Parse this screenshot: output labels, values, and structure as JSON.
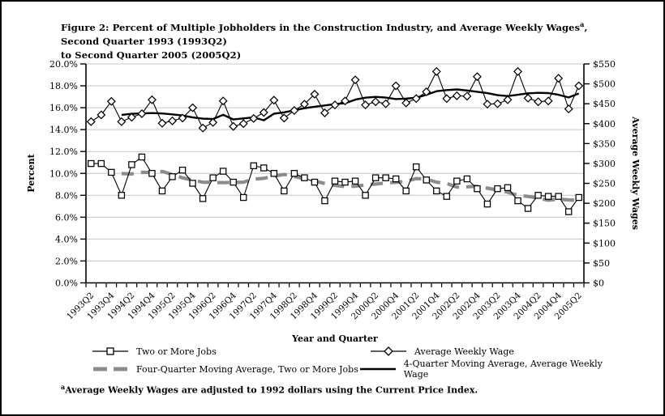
{
  "figure": {
    "title_prefix": "Figure 2:  ",
    "title_main": "Percent of Multiple Jobholders in the Construction Industry, and Average Weekly Wages",
    "title_sup": "a",
    "title_rest": ", Second Quarter 1993 (1993Q2)",
    "title_line2": "to Second Quarter 2005 (2005Q2)",
    "footnote_sup": "a",
    "footnote_text": "Average Weekly Wages are adjusted to 1992 dollars using the Current Price Index."
  },
  "chart_data": {
    "type": "line",
    "x_axis_label": "Year and Quarter",
    "y_left_axis_label": "Percent",
    "y_right_axis_label": "Average Weekly Wages",
    "y_left_range": [
      0,
      20
    ],
    "y_left_tick_step": 2,
    "y_right_range": [
      0,
      550
    ],
    "y_right_tick_step": 50,
    "y_left_ticks": [
      "0.0%",
      "2.0%",
      "4.0%",
      "6.0%",
      "8.0%",
      "10.0%",
      "12.0%",
      "14.0%",
      "16.0%",
      "18.0%",
      "20.0%"
    ],
    "y_right_ticks": [
      "$0",
      "$50",
      "$100",
      "$150",
      "$200",
      "$250",
      "$300",
      "$350",
      "$400",
      "$450",
      "$500",
      "$550"
    ],
    "grid": "horizontal",
    "legend_position": "bottom",
    "xtick_label_step": 2,
    "categories": [
      "1993Q2",
      "1993Q3",
      "1993Q4",
      "1994Q1",
      "1994Q2",
      "1994Q3",
      "1994Q4",
      "1995Q1",
      "1995Q2",
      "1995Q3",
      "1995Q4",
      "1996Q1",
      "1996Q2",
      "1996Q3",
      "1996Q4",
      "1997Q1",
      "1997Q2",
      "1997Q3",
      "1997Q4",
      "1998Q1",
      "1998Q2",
      "1998Q3",
      "1998Q4",
      "1999Q1",
      "1999Q2",
      "1999Q3",
      "1999Q4",
      "2000Q1",
      "2000Q2",
      "2000Q3",
      "2000Q4",
      "2001Q1",
      "2001Q2",
      "2001Q3",
      "2001Q4",
      "2002Q1",
      "2002Q2",
      "2002Q3",
      "2002Q4",
      "2003Q1",
      "2003Q2",
      "2003Q3",
      "2003Q4",
      "2004Q1",
      "2004Q2",
      "2004Q3",
      "2004Q4",
      "2005Q1",
      "2005Q2"
    ],
    "series": [
      {
        "name": "Two or More Jobs",
        "axis": "left",
        "marker": "square",
        "style": "thin-black",
        "values": [
          10.9,
          10.9,
          10.1,
          8.0,
          10.8,
          11.5,
          10.0,
          8.4,
          9.7,
          10.3,
          9.1,
          7.7,
          9.6,
          10.2,
          9.2,
          7.8,
          10.7,
          10.5,
          10.0,
          8.4,
          10.0,
          9.6,
          9.2,
          7.5,
          9.3,
          9.2,
          9.3,
          8.0,
          9.6,
          9.6,
          9.5,
          8.4,
          10.6,
          9.4,
          8.4,
          7.9,
          9.3,
          9.5,
          8.6,
          7.2,
          8.6,
          8.7,
          7.5,
          6.8,
          8.0,
          7.9,
          7.9,
          6.5,
          7.8
        ]
      },
      {
        "name": "Average Weekly Wage",
        "axis": "right",
        "marker": "diamond",
        "style": "thin-black",
        "values": [
          405,
          422,
          456,
          405,
          416,
          425,
          460,
          401,
          407,
          414,
          440,
          389,
          403,
          457,
          393,
          400,
          413,
          428,
          459,
          414,
          433,
          449,
          474,
          427,
          447,
          457,
          510,
          447,
          455,
          450,
          495,
          452,
          463,
          480,
          531,
          463,
          470,
          469,
          518,
          449,
          450,
          460,
          531,
          464,
          455,
          457,
          514,
          437,
          495
        ]
      },
      {
        "name": "Four-Quarter Moving Average, Two or More Jobs",
        "axis": "left",
        "marker": "none",
        "style": "gray-dashed",
        "values": [
          null,
          null,
          null,
          9.98,
          9.95,
          10.1,
          10.08,
          10.18,
          9.9,
          9.6,
          9.38,
          9.2,
          9.18,
          9.15,
          9.18,
          9.2,
          9.48,
          9.55,
          9.75,
          9.9,
          9.73,
          9.5,
          9.3,
          9.08,
          8.9,
          8.8,
          8.83,
          8.95,
          9.03,
          9.13,
          9.18,
          9.28,
          9.53,
          9.48,
          9.2,
          9.08,
          8.75,
          8.78,
          8.83,
          8.65,
          8.48,
          8.28,
          8.0,
          7.9,
          7.75,
          7.55,
          7.65,
          7.58,
          7.53
        ]
      },
      {
        "name": "4-Quarter Moving Average, Average Weekly Wage",
        "axis": "right",
        "marker": "none",
        "style": "black-solid",
        "values": [
          null,
          null,
          null,
          422,
          424.75,
          425.5,
          426.5,
          425.5,
          423.25,
          420.5,
          415.5,
          412.5,
          411.5,
          422.25,
          410.5,
          413.25,
          415.75,
          408.5,
          425,
          428.5,
          433.5,
          438.75,
          442.5,
          445.75,
          449.25,
          451.25,
          460.25,
          465.25,
          467.25,
          465.5,
          461.75,
          463,
          465,
          472.5,
          481.5,
          484.25,
          486,
          483.25,
          480,
          476.5,
          471.5,
          469.25,
          472.5,
          476.25,
          477.5,
          476.75,
          472.5,
          465.75,
          475.75
        ]
      }
    ]
  },
  "colors": {
    "background": "#ffffff",
    "axis": "#000000",
    "gridline": "#c6c6c6",
    "series_line": "#000000",
    "marker_fill": "#ffffff",
    "moving_avg_gray": "#8c8c8c",
    "moving_avg_black": "#000000",
    "text": "#000000"
  }
}
